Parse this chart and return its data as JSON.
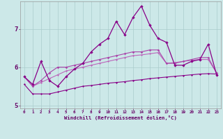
{
  "xlabel": "Windchill (Refroidissement éolien,°C)",
  "x_values": [
    0,
    1,
    2,
    3,
    4,
    5,
    6,
    7,
    8,
    9,
    10,
    11,
    12,
    13,
    14,
    15,
    16,
    17,
    18,
    19,
    20,
    21,
    22,
    23
  ],
  "line1": [
    5.75,
    5.55,
    6.15,
    5.65,
    5.5,
    5.75,
    5.95,
    6.1,
    6.4,
    6.6,
    6.75,
    7.2,
    6.85,
    7.3,
    7.6,
    7.1,
    6.75,
    6.65,
    6.05,
    6.05,
    6.15,
    6.2,
    6.6,
    5.8
  ],
  "line2": [
    5.75,
    5.5,
    5.65,
    5.85,
    6.0,
    6.0,
    6.05,
    6.1,
    6.15,
    6.2,
    6.25,
    6.3,
    6.35,
    6.4,
    6.4,
    6.45,
    6.45,
    6.1,
    6.1,
    6.15,
    6.2,
    6.25,
    6.25,
    5.85
  ],
  "line3": [
    5.75,
    5.5,
    5.6,
    5.7,
    5.8,
    5.9,
    5.95,
    6.0,
    6.05,
    6.1,
    6.15,
    6.2,
    6.25,
    6.3,
    6.32,
    6.35,
    6.38,
    6.1,
    6.12,
    6.15,
    6.18,
    6.2,
    6.2,
    5.85
  ],
  "line4": [
    5.55,
    5.3,
    5.3,
    5.3,
    5.35,
    5.4,
    5.45,
    5.5,
    5.52,
    5.55,
    5.58,
    5.6,
    5.62,
    5.65,
    5.67,
    5.7,
    5.72,
    5.74,
    5.76,
    5.78,
    5.8,
    5.82,
    5.83,
    5.82
  ],
  "background_color": "#cce8e8",
  "grid_color": "#aacccc",
  "line1_color": "#880088",
  "line2_color": "#aa44aa",
  "line3_color": "#bb66bb",
  "line4_color": "#880088",
  "axis_color": "#660066",
  "ylim": [
    4.92,
    7.72
  ],
  "yticks": [
    5,
    6,
    7
  ]
}
